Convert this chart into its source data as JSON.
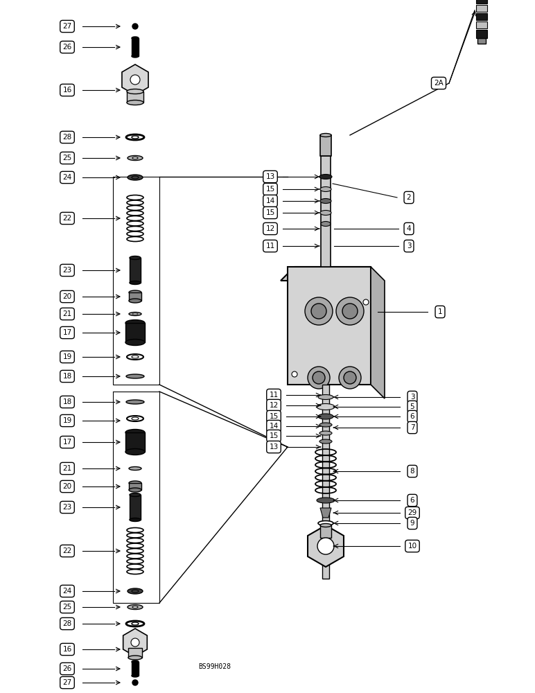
{
  "bg_color": "#ffffff",
  "watermark": "BS99H028",
  "fig_width": 7.72,
  "fig_height": 10.0,
  "dpi": 100
}
